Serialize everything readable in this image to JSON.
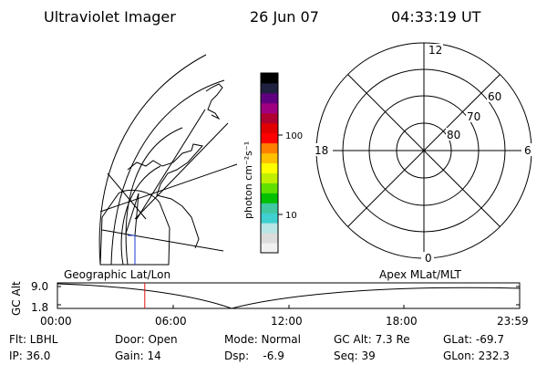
{
  "header": {
    "title": "Ultraviolet Imager",
    "date": "26 Jun 07",
    "time": "04:33:19 UT"
  },
  "colorbar": {
    "unit_label": "photon cm⁻²s⁻¹",
    "tick_100": "100",
    "tick_10": "10",
    "colors": [
      "#f0f0f0",
      "#dcdcdc",
      "#b8e6e6",
      "#40d0d0",
      "#40c8a0",
      "#00c000",
      "#60e000",
      "#c0f000",
      "#ffff00",
      "#ffc000",
      "#ff8000",
      "#ff0000",
      "#e00000",
      "#b00030",
      "#a00080",
      "#600080",
      "#202040",
      "#000000"
    ]
  },
  "polar_plot": {
    "labels": {
      "top": "12",
      "bottom": "0",
      "left": "18",
      "right": "6",
      "lat_60": "60",
      "lat_70": "70",
      "lat_80": "80"
    }
  },
  "timeline": {
    "y_label": "GC Alt",
    "y_ticks": [
      "9.0",
      "1.8"
    ],
    "left_caption": "Geographic Lat/Lon",
    "right_caption": "Apex MLat/MLT",
    "x_ticks": [
      "00:00",
      "06:00",
      "12:00",
      "18:00",
      "23:59"
    ],
    "current_time_fraction": 0.189
  },
  "status": {
    "flt": "Flt: LBHL",
    "ip": "IP: 36.0",
    "door": "Door: Open",
    "gain": "Gain: 14",
    "mode": "Mode: Normal",
    "dsp": "Dsp:    -6.9",
    "gc_alt": "GC Alt: 7.3 Re",
    "seq": "Seq: 39",
    "glat": "GLat: -69.7",
    "glon": "GLon: 232.3"
  }
}
